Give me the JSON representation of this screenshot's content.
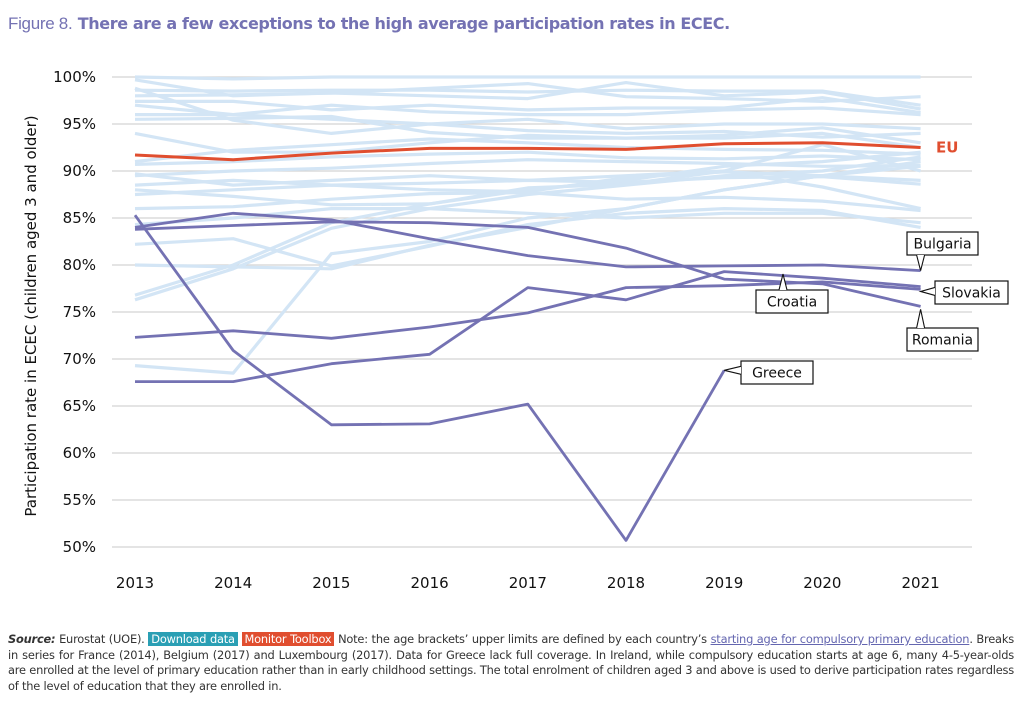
{
  "figure": {
    "number_label": "Figure 8.",
    "title": "There are a few exceptions to the high average participation rates in ECEC."
  },
  "colors": {
    "title": "#7472b3",
    "background_series": "#d3e5f5",
    "highlight_series": "#7472b3",
    "eu_series": "#e04e2f",
    "gridline": "#d4d4d4",
    "download_badge": "#2a9fb4",
    "monitor_badge": "#e04e2f",
    "link": "#6466b0"
  },
  "chart_data": {
    "type": "line",
    "title": "There are a few exceptions to the high average participation rates in ECEC.",
    "xlabel": "",
    "ylabel": "Participation rate in ECEC (children aged 3 and older)",
    "x": [
      2013,
      2014,
      2015,
      2016,
      2017,
      2018,
      2019,
      2020,
      2021
    ],
    "x_tick_labels": [
      "2013",
      "2014",
      "2015",
      "2016",
      "2017",
      "2018",
      "2019",
      "2020",
      "2021"
    ],
    "ylim": [
      50,
      100
    ],
    "y_ticks": [
      50,
      55,
      60,
      65,
      70,
      75,
      80,
      85,
      90,
      95,
      100
    ],
    "y_tick_labels": [
      "50%",
      "55%",
      "60%",
      "65%",
      "70%",
      "75%",
      "80%",
      "85%",
      "90%",
      "95%",
      "100%"
    ],
    "grid": true,
    "legend": "none (direct labels at line ends)",
    "eu_series": {
      "name": "EU",
      "values": [
        91.7,
        91.2,
        91.9,
        92.4,
        92.4,
        92.3,
        92.9,
        93.0,
        92.5
      ]
    },
    "highlighted_series": [
      {
        "name": "Greece",
        "values": [
          85.3,
          70.9,
          63.0,
          63.1,
          65.2,
          50.7,
          68.8,
          null,
          null
        ]
      },
      {
        "name": "Bulgaria",
        "values": [
          84.0,
          85.5,
          84.8,
          82.8,
          81.0,
          79.8,
          79.9,
          80.0,
          79.4
        ]
      },
      {
        "name": "Romania",
        "values": [
          83.8,
          84.2,
          84.6,
          84.5,
          84.0,
          81.8,
          78.5,
          78.0,
          75.6
        ]
      },
      {
        "name": "Slovakia",
        "values": [
          72.3,
          73.0,
          72.2,
          73.4,
          74.9,
          77.6,
          77.8,
          78.2,
          77.4
        ]
      },
      {
        "name": "Croatia",
        "values": [
          67.6,
          67.6,
          69.5,
          70.5,
          77.6,
          76.3,
          79.3,
          78.6,
          77.7
        ]
      }
    ],
    "background_series": [
      {
        "values": [
          100.0,
          99.8,
          100.0,
          100.0,
          100.0,
          100.0,
          100.0,
          100.0,
          100.0
        ]
      },
      {
        "values": [
          99.7,
          98.0,
          98.3,
          98.8,
          99.3,
          97.9,
          97.7,
          97.4,
          97.9
        ]
      },
      {
        "values": [
          98.6,
          98.5,
          98.6,
          98.6,
          98.4,
          98.6,
          98.5,
          98.5,
          97.0
        ]
      },
      {
        "values": [
          98.0,
          98.1,
          98.3,
          98.0,
          97.7,
          99.4,
          98.0,
          98.4,
          96.6
        ]
      },
      {
        "values": [
          97.4,
          97.4,
          96.5,
          97.0,
          96.5,
          96.7,
          96.7,
          97.8,
          96.2
        ]
      },
      {
        "values": [
          97.0,
          96.0,
          97.0,
          96.3,
          96.0,
          96.0,
          96.5,
          96.7,
          96.0
        ]
      },
      {
        "values": [
          96.0,
          96.0,
          95.5,
          95.0,
          95.5,
          94.5,
          95.0,
          95.0,
          94.5
        ]
      },
      {
        "values": [
          98.8,
          95.4,
          94.0,
          95.0,
          94.3,
          94.0,
          94.2,
          93.6,
          94.0
        ]
      },
      {
        "values": [
          95.5,
          95.6,
          95.8,
          94.1,
          93.5,
          93.5,
          93.8,
          94.6,
          93.0
        ]
      },
      {
        "values": [
          94.0,
          92.0,
          92.0,
          93.0,
          93.8,
          93.5,
          93.5,
          94.0,
          92.5
        ]
      },
      {
        "values": [
          91.0,
          92.2,
          92.8,
          93.4,
          93.0,
          92.5,
          92.3,
          92.2,
          91.8
        ]
      },
      {
        "values": [
          90.7,
          91.0,
          91.5,
          91.8,
          92.0,
          91.4,
          91.3,
          91.6,
          91.2
        ]
      },
      {
        "values": [
          89.5,
          90.0,
          90.3,
          90.8,
          91.2,
          91.0,
          90.8,
          90.5,
          90.6
        ]
      },
      {
        "values": [
          89.7,
          88.5,
          89.0,
          89.5,
          89.0,
          89.5,
          90.0,
          92.8,
          90.0
        ]
      },
      {
        "values": [
          88.5,
          89.0,
          88.5,
          88.7,
          89.0,
          88.8,
          89.3,
          89.4,
          88.6
        ]
      },
      {
        "values": [
          87.5,
          88.0,
          88.5,
          88.0,
          87.8,
          89.3,
          89.9,
          89.5,
          89.0
        ]
      },
      {
        "values": [
          88.0,
          87.3,
          86.4,
          86.5,
          88.2,
          88.6,
          90.0,
          88.3,
          86.0
        ]
      },
      {
        "values": [
          86.0,
          86.2,
          87.0,
          87.6,
          87.7,
          87.0,
          87.2,
          86.8,
          85.8
        ]
      },
      {
        "values": [
          84.3,
          85.0,
          86.0,
          86.0,
          85.5,
          85.0,
          85.5,
          85.5,
          84.5
        ]
      },
      {
        "values": [
          82.2,
          82.8,
          79.9,
          82.0,
          84.3,
          85.5,
          86.0,
          85.8,
          84.0
        ]
      },
      {
        "values": [
          80.0,
          79.8,
          79.6,
          82.1,
          84.0,
          86.0,
          88.0,
          89.5,
          90.5
        ]
      },
      {
        "values": [
          76.8,
          80.0,
          84.5,
          86.5,
          88.0,
          89.0,
          90.5,
          91.0,
          92.0
        ]
      },
      {
        "values": [
          76.3,
          79.6,
          83.9,
          86.0,
          87.5,
          88.5,
          89.5,
          90.0,
          91.5
        ]
      },
      {
        "values": [
          69.3,
          68.5,
          81.2,
          82.5,
          85.0,
          86.0,
          88.0,
          89.5,
          91.0
        ]
      }
    ],
    "annotations": [
      "EU",
      "Bulgaria",
      "Croatia",
      "Slovakia",
      "Romania",
      "Greece"
    ]
  },
  "footer": {
    "source_label": "Source:",
    "source_text": "Eurostat (UOE).",
    "download_button": "Download data",
    "monitor_button": "Monitor Toolbox",
    "note_before_link": "Note: the age brackets’ upper limits are defined by each country’s",
    "link_text": "starting age for compulsory primary education",
    "note_after_link": ". Breaks in series for France (2014), Belgium (2017) and Luxembourg (2017). Data for Greece lack full coverage. In Ireland, while compulsory education starts at age 6, many 4-5-year-olds are enrolled at the level of primary education rather than in early childhood settings. The total enrolment of children aged 3 and above is used to derive participation rates regardless of the level of education that they are enrolled in."
  }
}
